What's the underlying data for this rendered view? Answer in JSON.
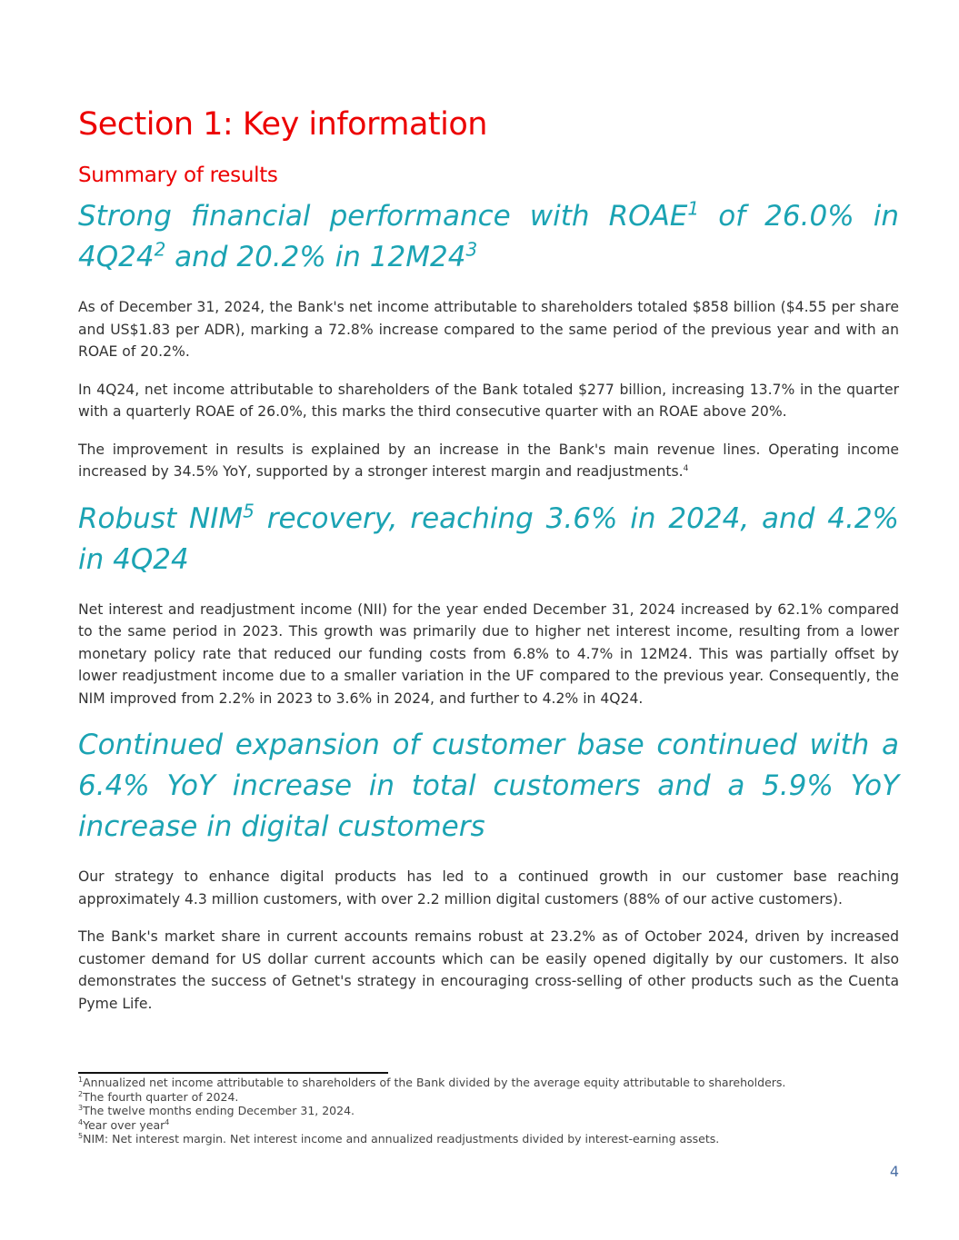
{
  "section_title": "Section 1: Key information",
  "subtitle": "Summary of results",
  "blocks": [
    {
      "heading": [
        {
          "text": "Strong financial performance with ROAE"
        },
        {
          "sup": "1"
        },
        {
          "text": " of 26.0% in 4Q24"
        },
        {
          "sup": "2"
        },
        {
          "text": " and 20.2% in 12M24"
        },
        {
          "sup": "3"
        }
      ],
      "paragraphs": [
        {
          "text": "As of December 31, 2024, the Bank's net income attributable to shareholders totaled $858 billion ($4.55 per share and US$1.83 per ADR), marking a 72.8% increase compared to the same period of the previous year and with an ROAE of 20.2%."
        },
        {
          "text": "In 4Q24, net income attributable to shareholders of the Bank totaled $277 billion, increasing 13.7% in the quarter with a quarterly ROAE of 26.0%, this marks the third consecutive quarter with an ROAE above 20%."
        },
        {
          "text": "The improvement in results is explained by an increase in the Bank's main revenue lines. Operating income increased by 34.5% YoY, supported by a stronger interest margin and readjustments.",
          "sup": "4"
        }
      ]
    },
    {
      "heading": [
        {
          "text": "Robust NIM"
        },
        {
          "sup": "5"
        },
        {
          "text": " recovery, reaching 3.6% in 2024, and 4.2% in 4Q24"
        }
      ],
      "paragraphs": [
        {
          "text": "Net interest and readjustment income (NII) for the year ended December 31, 2024 increased by 62.1% compared to the same period in 2023. This growth was primarily due to higher net interest income, resulting from a lower monetary policy rate that reduced our funding costs from 6.8% to 4.7% in 12M24. This was partially offset by lower readjustment income due to a smaller variation in the UF compared to the previous year. Consequently, the NIM improved from 2.2% in 2023 to 3.6% in 2024, and further to 4.2% in 4Q24."
        }
      ]
    },
    {
      "heading": [
        {
          "text": "Continued expansion of customer base continued with a 6.4% YoY increase in total customers and a 5.9% YoY increase in digital customers"
        }
      ],
      "paragraphs": [
        {
          "text": "Our strategy to enhance digital products has led to a continued growth in our customer base reaching approximately 4.3 million customers, with over 2.2 million digital customers (88% of our active customers)."
        },
        {
          "text": "The Bank's market share in current accounts remains robust at 23.2% as of October 2024, driven by increased customer demand for US dollar current accounts which can be easily opened digitally by our customers. It also demonstrates the success of Getnet's strategy in encouraging cross-selling of other products such as the Cuenta Pyme Life."
        }
      ]
    }
  ],
  "footnotes": [
    {
      "mark": "1",
      "text": "Annualized net income attributable to shareholders of the Bank divided by the average equity attributable to shareholders."
    },
    {
      "mark": "2",
      "text": "The fourth quarter of 2024."
    },
    {
      "mark": "3",
      "text": "The twelve months ending December 31, 2024."
    },
    {
      "mark": "4",
      "text": "Year over year",
      "ref": "4"
    },
    {
      "mark": "5",
      "text": "NIM: Net interest margin. Net interest income and annualized readjustments divided by interest-earning assets."
    }
  ],
  "page_number": "4"
}
